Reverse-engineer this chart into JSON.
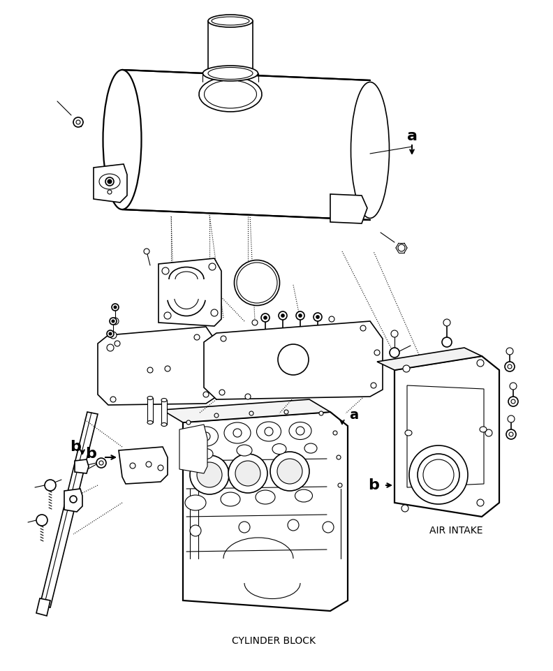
{
  "bg_color": "#ffffff",
  "line_color": "#000000",
  "text_air_intake": "AIR INTAKE",
  "text_cylinder_block": "CYLINDER BLOCK",
  "label_a": "a",
  "label_b": "b",
  "label_fontsize": 13,
  "annotation_fontsize": 10,
  "fig_width": 7.92,
  "fig_height": 9.61,
  "dpi": 100
}
